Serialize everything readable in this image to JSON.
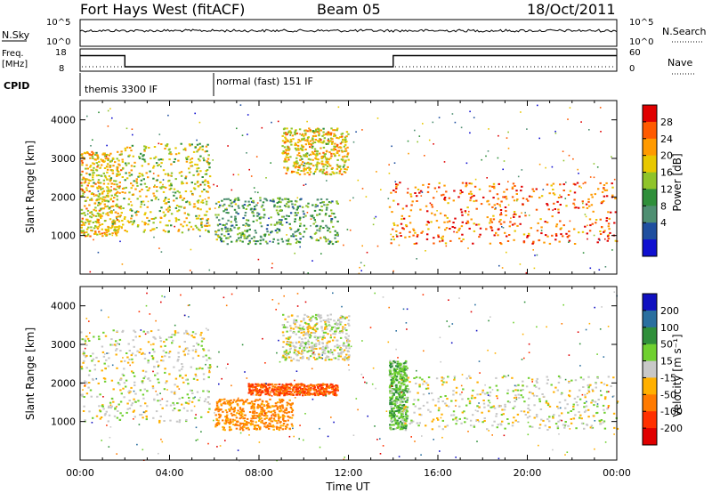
{
  "header": {
    "station": "Fort Hays West (fitACF)",
    "beam": "Beam 05",
    "date": "18/Oct/2011"
  },
  "status": {
    "nsky_label": "N.Sky",
    "nsky_ticks": [
      "10^5",
      "10^0"
    ],
    "nsearch_label": "N.Search",
    "nsearch_ticks": [
      "10^5",
      "10^0"
    ],
    "freq_label": "Freq.",
    "freq_unit": "[MHz]",
    "freq_ticks": [
      "18",
      "8"
    ],
    "nave_label": "Nave",
    "nave_ticks": [
      "60",
      "0"
    ],
    "cpid_label": "CPID",
    "cpid_segments": [
      {
        "label": "themis 3300 IF",
        "start_h": 0,
        "end_h": 6
      },
      {
        "label": "normal (fast) 151 IF",
        "start_h": 6,
        "end_h": 24
      }
    ],
    "freq_series": [
      {
        "t": 0,
        "mhz": 15
      },
      {
        "t": 2,
        "mhz": 15
      },
      {
        "t": 2,
        "mhz": 10
      },
      {
        "t": 14,
        "mhz": 10
      },
      {
        "t": 14,
        "mhz": 15
      },
      {
        "t": 24,
        "mhz": 15
      }
    ]
  },
  "chart_data": [
    {
      "type": "heatmap",
      "panel": "power",
      "ylabel": "Slant Range [km]",
      "xlabel": "Time UT",
      "xlim": [
        0,
        24
      ],
      "ylim": [
        0,
        4500
      ],
      "yticks": [
        "1000",
        "2000",
        "3000",
        "4000"
      ],
      "xticks": [
        "00:00",
        "04:00",
        "08:00",
        "12:00",
        "16:00",
        "20:00",
        "00:00"
      ],
      "colorbar": {
        "label": "Power [dB]",
        "ticks": [
          "28",
          "24",
          "20",
          "16",
          "12",
          "8",
          "4"
        ],
        "colors": [
          "#e00000",
          "#ff5a00",
          "#ff9a00",
          "#e8c800",
          "#8fc42a",
          "#2f8f3a",
          "#4f8f72",
          "#1f4f9f",
          "#1010d0"
        ]
      },
      "features": [
        {
          "t_start": 0.0,
          "t_end": 1.8,
          "range_km": [
            1000,
            3200
          ],
          "level_db": 18
        },
        {
          "t_start": 1.8,
          "t_end": 5.8,
          "range_km": [
            1100,
            3400
          ],
          "level_db": 16
        },
        {
          "t_start": 6.0,
          "t_end": 11.5,
          "range_km": [
            800,
            2000
          ],
          "level_db": 10
        },
        {
          "t_start": 9.0,
          "t_end": 12.0,
          "range_km": [
            2600,
            3800
          ],
          "level_db": 18
        },
        {
          "t_start": 13.8,
          "t_end": 24.0,
          "range_km": [
            800,
            2400
          ],
          "level_db": 24
        }
      ]
    },
    {
      "type": "heatmap",
      "panel": "velocity",
      "ylabel": "Slant Range [km]",
      "xlabel": "Time UT",
      "xlim": [
        0,
        24
      ],
      "ylim": [
        0,
        4500
      ],
      "yticks": [
        "1000",
        "2000",
        "3000",
        "4000"
      ],
      "xticks": [
        "00:00",
        "04:00",
        "08:00",
        "12:00",
        "16:00",
        "20:00",
        "00:00"
      ],
      "colorbar": {
        "label": "Velocity [m s⁻¹]",
        "ticks": [
          "200",
          "100",
          "50",
          "15",
          "-15",
          "-50",
          "-100",
          "-200"
        ],
        "colors": [
          "#1010c0",
          "#2a6f9f",
          "#2f8f3a",
          "#6fd02f",
          "#c8c8c8",
          "#ffb000",
          "#ff7a00",
          "#ff3000",
          "#e00000"
        ]
      },
      "features": [
        {
          "t_start": 0.0,
          "t_end": 5.8,
          "range_km": [
            1000,
            3400
          ],
          "velocity": 0
        },
        {
          "t_start": 6.0,
          "t_end": 9.5,
          "range_km": [
            800,
            1600
          ],
          "velocity": -60
        },
        {
          "t_start": 7.5,
          "t_end": 11.5,
          "range_km": [
            1700,
            2000
          ],
          "velocity": -100
        },
        {
          "t_start": 9.0,
          "t_end": 12.0,
          "range_km": [
            2600,
            3800
          ],
          "velocity": 0
        },
        {
          "t_start": 13.8,
          "t_end": 14.6,
          "range_km": [
            800,
            2600
          ],
          "velocity": 40
        },
        {
          "t_start": 14.2,
          "t_end": 24.0,
          "range_km": [
            800,
            2200
          ],
          "velocity": 0
        }
      ]
    }
  ]
}
